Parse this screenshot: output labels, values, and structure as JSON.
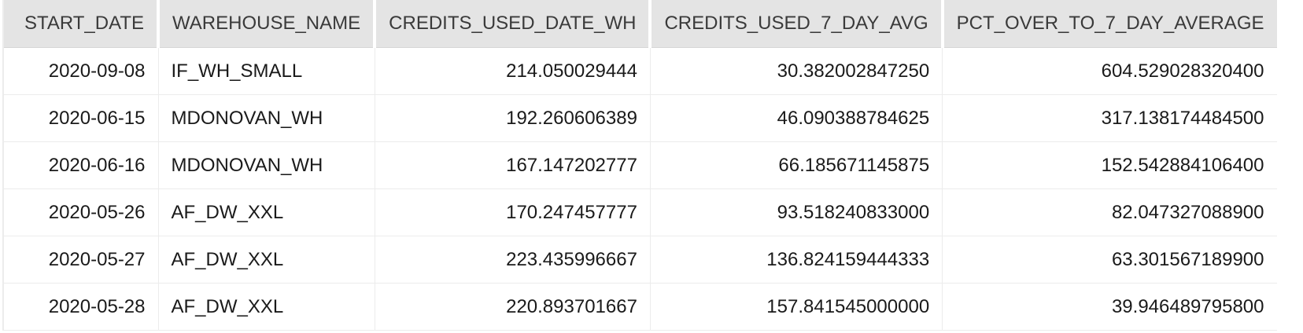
{
  "results_grid": {
    "columns": [
      "START_DATE",
      "WAREHOUSE_NAME",
      "CREDITS_USED_DATE_WH",
      "CREDITS_USED_7_DAY_AVG",
      "PCT_OVER_TO_7_DAY_AVERAGE"
    ],
    "rows": [
      [
        "2020-09-08",
        "IF_WH_SMALL",
        "214.050029444",
        "30.382002847250",
        "604.529028320400"
      ],
      [
        "2020-06-15",
        "MDONOVAN_WH",
        "192.260606389",
        "46.090388784625",
        "317.138174484500"
      ],
      [
        "2020-06-16",
        "MDONOVAN_WH",
        "167.147202777",
        "66.185671145875",
        "152.542884106400"
      ],
      [
        "2020-05-26",
        "AF_DW_XXL",
        "170.247457777",
        "93.518240833000",
        "82.047327088900"
      ],
      [
        "2020-05-27",
        "AF_DW_XXL",
        "223.435996667",
        "136.824159444333",
        "63.301567189900"
      ],
      [
        "2020-05-28",
        "AF_DW_XXL",
        "220.893701667",
        "157.841545000000",
        "39.946489795800"
      ]
    ]
  }
}
